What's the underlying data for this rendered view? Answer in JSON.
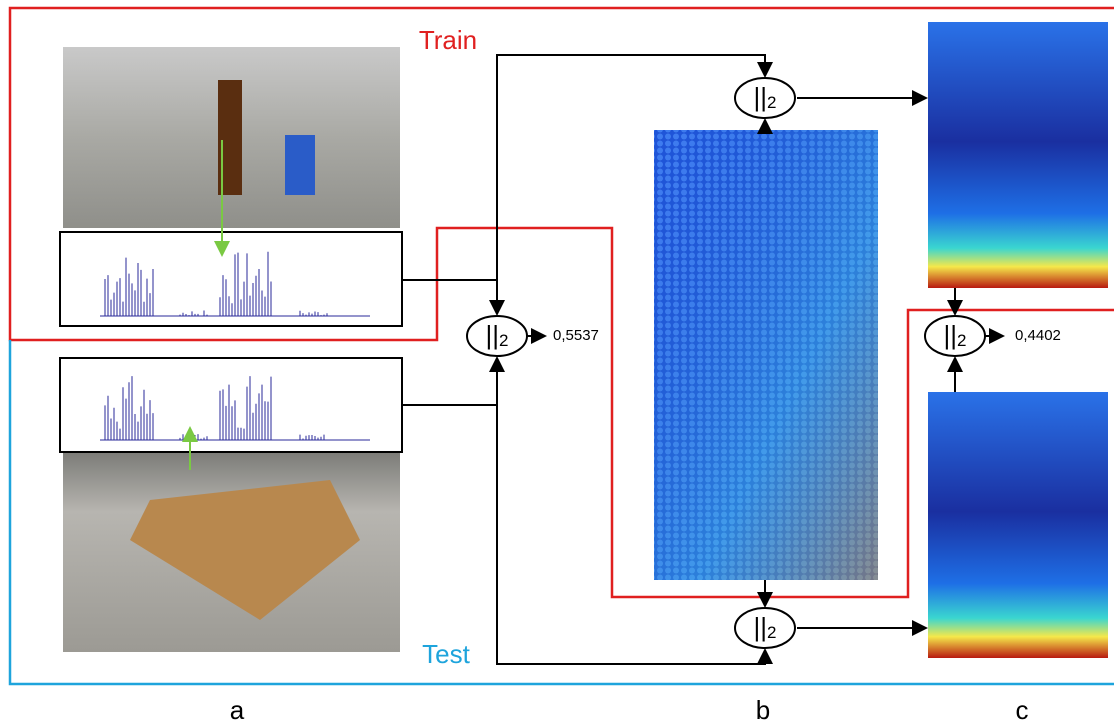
{
  "labels": {
    "train": "Train",
    "test": "Test"
  },
  "norms": [
    {
      "symbol": "||",
      "subscript": "2"
    },
    {
      "symbol": "||",
      "subscript": "2"
    },
    {
      "symbol": "||",
      "subscript": "2"
    },
    {
      "symbol": "||",
      "subscript": "2"
    }
  ],
  "outputs": [
    "0,5537",
    "0,4402"
  ],
  "panels": [
    "a",
    "b",
    "c"
  ]
}
